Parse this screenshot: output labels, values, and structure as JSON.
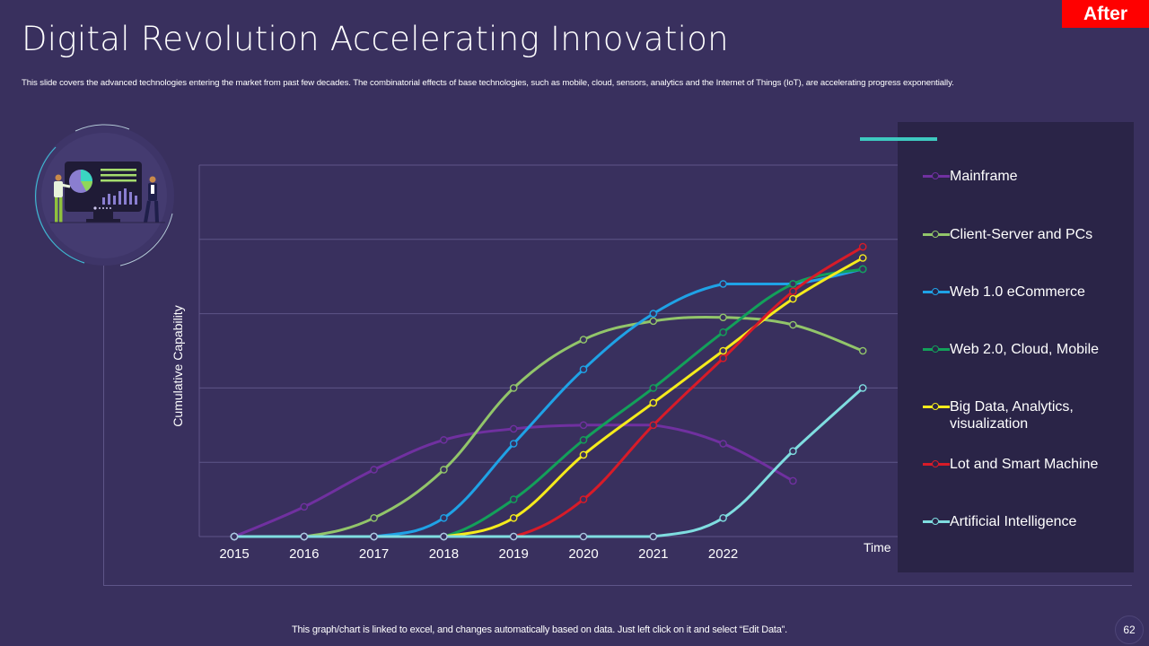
{
  "header": {
    "title": "Digital Revolution Accelerating Innovation",
    "subtitle": "This slide covers the advanced technologies entering the market  from past few decades. The combinatorial effects of base technologies, such as mobile, cloud, sensors, analytics and the Internet of Things  (IoT), are accelerating progress exponentially.",
    "badge": "After"
  },
  "illustration": {
    "icon": "presentation-dashboard-illustration"
  },
  "footer": {
    "note": "This graph/chart is linked to excel,  and changes automatically based on data. Just left click on it and select “Edit Data”.",
    "page_number": "62"
  },
  "colors": {
    "background": "#39305e",
    "legend_panel": "#2a2447",
    "accent": "#3ec9c0",
    "badge": "#ff0000"
  },
  "chart_data": {
    "type": "line",
    "title": "",
    "xlabel": "Time",
    "ylabel": "Cumulative  Capability",
    "x": [
      "2015",
      "2016",
      "2017",
      "2018",
      "2019",
      "2020",
      "2021",
      "2022",
      "",
      ""
    ],
    "ylim": [
      0,
      5
    ],
    "yticks": [
      0,
      1,
      2,
      3,
      4,
      5
    ],
    "show_y_tick_labels": false,
    "grid": true,
    "smooth": true,
    "legend_position": "right",
    "series": [
      {
        "name": "Mainframe",
        "color": "#7030a0",
        "values": [
          0,
          0.4,
          0.9,
          1.3,
          1.45,
          1.5,
          1.5,
          1.25,
          0.75,
          null
        ]
      },
      {
        "name": "Client-Server and PCs",
        "color": "#92c56a",
        "values": [
          0,
          0,
          0.25,
          0.9,
          2.0,
          2.65,
          2.9,
          2.95,
          2.85,
          2.5
        ]
      },
      {
        "name": "Web 1.0 eCommerce",
        "color": "#1fa2e6",
        "values": [
          0,
          0,
          0,
          0.25,
          1.25,
          2.25,
          3.0,
          3.4,
          3.4,
          3.6
        ]
      },
      {
        "name": "Web 2.0, Cloud, Mobile",
        "color": "#13a05a",
        "values": [
          0,
          0,
          0,
          0,
          0.5,
          1.3,
          2.0,
          2.75,
          3.4,
          3.6
        ]
      },
      {
        "name": "Big Data, Analytics,\nvisualization",
        "color": "#f5eb1c",
        "values": [
          0,
          0,
          0,
          0,
          0.25,
          1.1,
          1.8,
          2.5,
          3.2,
          3.75
        ]
      },
      {
        "name": "Lot and Smart Machine",
        "color": "#d81b28",
        "values": [
          0,
          0,
          0,
          0,
          0,
          0.5,
          1.5,
          2.4,
          3.3,
          3.9
        ]
      },
      {
        "name": "Artificial Intelligence",
        "color": "#7fdde0",
        "values": [
          0,
          0,
          0,
          0,
          0,
          0,
          0,
          0.25,
          1.15,
          2.0
        ]
      }
    ]
  }
}
